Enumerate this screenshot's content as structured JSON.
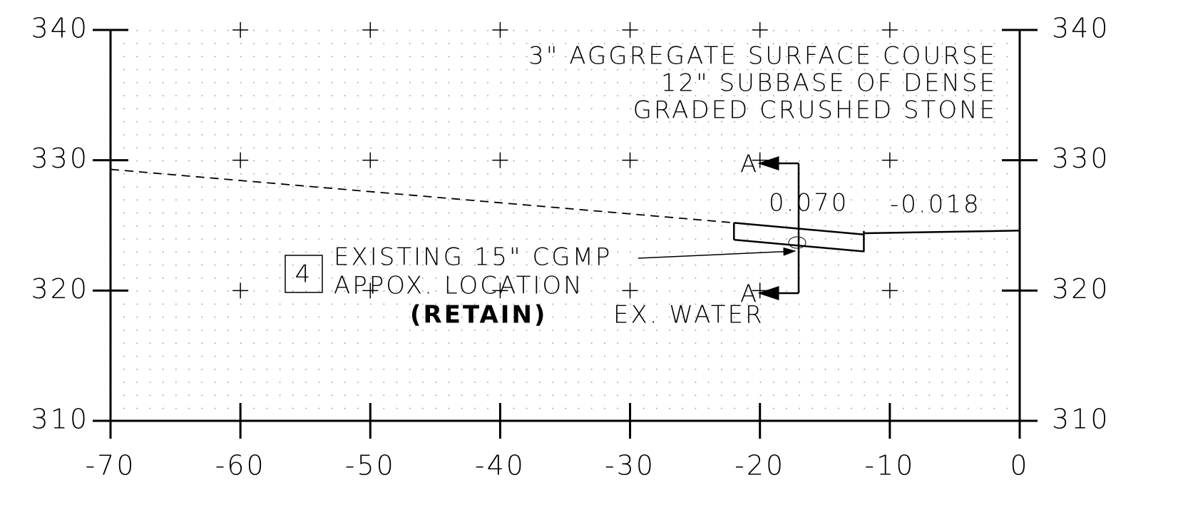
{
  "chart_data": {
    "type": "line",
    "xlim": [
      -70,
      0
    ],
    "xticks": [
      -70,
      -60,
      -50,
      -40,
      -30,
      -20,
      -10,
      0
    ],
    "ylim": [
      310,
      340
    ],
    "yticks": [
      310,
      320,
      330,
      340
    ],
    "grid": true,
    "series": [
      {
        "color": "#000000",
        "dash": true,
        "x": [
          -70,
          -22
        ],
        "values": [
          329.3,
          325.2
        ]
      },
      {
        "color": "#000000",
        "x": [
          -22,
          -12
        ],
        "values": [
          325.2,
          324.3
        ]
      },
      {
        "color": "#000000",
        "x": [
          -22,
          -12
        ],
        "values": [
          323.9,
          323.0
        ]
      },
      {
        "color": "#000000",
        "x": [
          -12,
          0
        ],
        "values": [
          324.4,
          324.6
        ]
      }
    ],
    "section_label": "A",
    "notes": [
      "3\" AGGREGATE SURFACE COURSE",
      "12\" SUBBASE OF DENSE",
      "GRADED CRUSHED STONE"
    ],
    "slopes": [
      "0.070",
      "-0.018"
    ],
    "callout_number": "4",
    "callout": [
      "EXISTING 15\" CGMP",
      "APPOX. LOCATION",
      "(RETAIN)"
    ],
    "utility": "EX. WATER"
  }
}
